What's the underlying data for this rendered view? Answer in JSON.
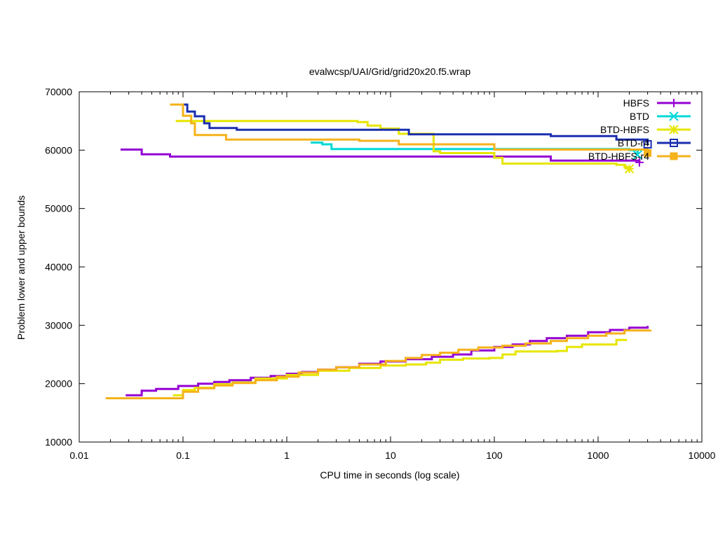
{
  "chart_data": {
    "type": "line",
    "title": "evalwcsp/UAI/Grid/grid20x20.f5.wrap",
    "xlabel": "CPU time in seconds (log scale)",
    "ylabel": "Problem lower and upper bounds",
    "xscale": "log",
    "xlim": [
      0.01,
      10000
    ],
    "ylim": [
      10000,
      70000
    ],
    "x_ticks": [
      0.01,
      0.1,
      1,
      10,
      100,
      1000,
      10000
    ],
    "x_tick_labels": [
      "0.01",
      "0.1",
      "1",
      "10",
      "100",
      "1000",
      "10000"
    ],
    "y_ticks": [
      10000,
      20000,
      30000,
      40000,
      50000,
      60000,
      70000
    ],
    "y_tick_labels": [
      "10000",
      "20000",
      "30000",
      "40000",
      "50000",
      "60000",
      "70000"
    ],
    "grid": false,
    "legend_position": "top-right",
    "series": [
      {
        "name": "HBFS",
        "color": "#9400d3",
        "marker": "plus",
        "upper": [
          [
            0.025,
            60100
          ],
          [
            0.04,
            59300
          ],
          [
            0.075,
            58900
          ],
          [
            0.5,
            58900
          ],
          [
            300,
            58900
          ],
          [
            350,
            58200
          ],
          [
            2500,
            57900
          ]
        ],
        "lower": [
          [
            0.028,
            18000
          ],
          [
            0.04,
            18800
          ],
          [
            0.055,
            19100
          ],
          [
            0.09,
            19600
          ],
          [
            0.14,
            20000
          ],
          [
            0.2,
            20300
          ],
          [
            0.28,
            20600
          ],
          [
            0.45,
            21000
          ],
          [
            0.7,
            21300
          ],
          [
            1.0,
            21700
          ],
          [
            1.4,
            22000
          ],
          [
            2.0,
            22400
          ],
          [
            3.0,
            22800
          ],
          [
            5.0,
            23400
          ],
          [
            8.0,
            23800
          ],
          [
            14,
            24200
          ],
          [
            25,
            24600
          ],
          [
            40,
            25000
          ],
          [
            60,
            25700
          ],
          [
            100,
            26300
          ],
          [
            150,
            26700
          ],
          [
            220,
            27300
          ],
          [
            320,
            27800
          ],
          [
            500,
            28200
          ],
          [
            800,
            28800
          ],
          [
            1300,
            29200
          ],
          [
            2000,
            29600
          ],
          [
            3000,
            29900
          ]
        ]
      },
      {
        "name": "BTD",
        "color": "#00d8d8",
        "marker": "cross",
        "upper": [
          [
            1.7,
            61300
          ],
          [
            2.2,
            61000
          ],
          [
            2.7,
            60200
          ],
          [
            2000,
            60000
          ],
          [
            2400,
            59200
          ]
        ],
        "lower": []
      },
      {
        "name": "BTD-HBFS",
        "color": "#e6e600",
        "marker": "star",
        "upper": [
          [
            0.085,
            65000
          ],
          [
            0.13,
            65000
          ],
          [
            4.8,
            64800
          ],
          [
            6.0,
            64200
          ],
          [
            8.0,
            63700
          ],
          [
            12,
            62800
          ],
          [
            26,
            59800
          ],
          [
            30,
            59500
          ],
          [
            100,
            58700
          ],
          [
            120,
            57700
          ],
          [
            1500,
            57500
          ],
          [
            1800,
            57000
          ],
          [
            2000,
            56800
          ]
        ],
        "lower": [
          [
            0.08,
            18000
          ],
          [
            0.1,
            18900
          ],
          [
            0.13,
            19300
          ],
          [
            0.2,
            19900
          ],
          [
            0.3,
            20200
          ],
          [
            0.5,
            20900
          ],
          [
            1.0,
            21500
          ],
          [
            2.0,
            22200
          ],
          [
            4.0,
            22700
          ],
          [
            8.0,
            23100
          ],
          [
            14,
            23300
          ],
          [
            22,
            23600
          ],
          [
            30,
            24100
          ],
          [
            50,
            24300
          ],
          [
            90,
            24400
          ],
          [
            120,
            25000
          ],
          [
            160,
            25500
          ],
          [
            400,
            25600
          ],
          [
            500,
            26300
          ],
          [
            700,
            26700
          ],
          [
            1500,
            27500
          ],
          [
            1900,
            27500
          ]
        ]
      },
      {
        "name": "BTD-r4",
        "color": "#1a2eb0",
        "marker": "square",
        "upper": [
          [
            0.1,
            67800
          ],
          [
            0.11,
            66600
          ],
          [
            0.13,
            65800
          ],
          [
            0.16,
            64600
          ],
          [
            0.18,
            63800
          ],
          [
            0.33,
            63500
          ],
          [
            15,
            62700
          ],
          [
            350,
            62400
          ],
          [
            1500,
            61800
          ],
          [
            3000,
            61000
          ]
        ],
        "lower": []
      },
      {
        "name": "BTD-HBFS-r4",
        "color": "#f5b21a",
        "marker": "filled-square",
        "upper": [
          [
            0.075,
            67800
          ],
          [
            0.1,
            65900
          ],
          [
            0.12,
            64600
          ],
          [
            0.13,
            62600
          ],
          [
            0.26,
            61800
          ],
          [
            5.0,
            61600
          ],
          [
            12,
            61000
          ],
          [
            100,
            60100
          ],
          [
            3000,
            59500
          ]
        ],
        "lower": [
          [
            0.018,
            17500
          ],
          [
            0.085,
            17500
          ],
          [
            0.1,
            18600
          ],
          [
            0.14,
            19200
          ],
          [
            0.2,
            19700
          ],
          [
            0.3,
            20100
          ],
          [
            0.5,
            20600
          ],
          [
            0.8,
            21200
          ],
          [
            1.3,
            21900
          ],
          [
            2.0,
            22400
          ],
          [
            3.0,
            22800
          ],
          [
            5.0,
            23300
          ],
          [
            9.0,
            23900
          ],
          [
            14,
            24400
          ],
          [
            20,
            24900
          ],
          [
            30,
            25300
          ],
          [
            45,
            25800
          ],
          [
            70,
            26200
          ],
          [
            120,
            26500
          ],
          [
            200,
            26900
          ],
          [
            350,
            27300
          ],
          [
            500,
            27800
          ],
          [
            800,
            28200
          ],
          [
            1200,
            28600
          ],
          [
            1800,
            29100
          ],
          [
            3200,
            29200
          ]
        ]
      }
    ]
  }
}
